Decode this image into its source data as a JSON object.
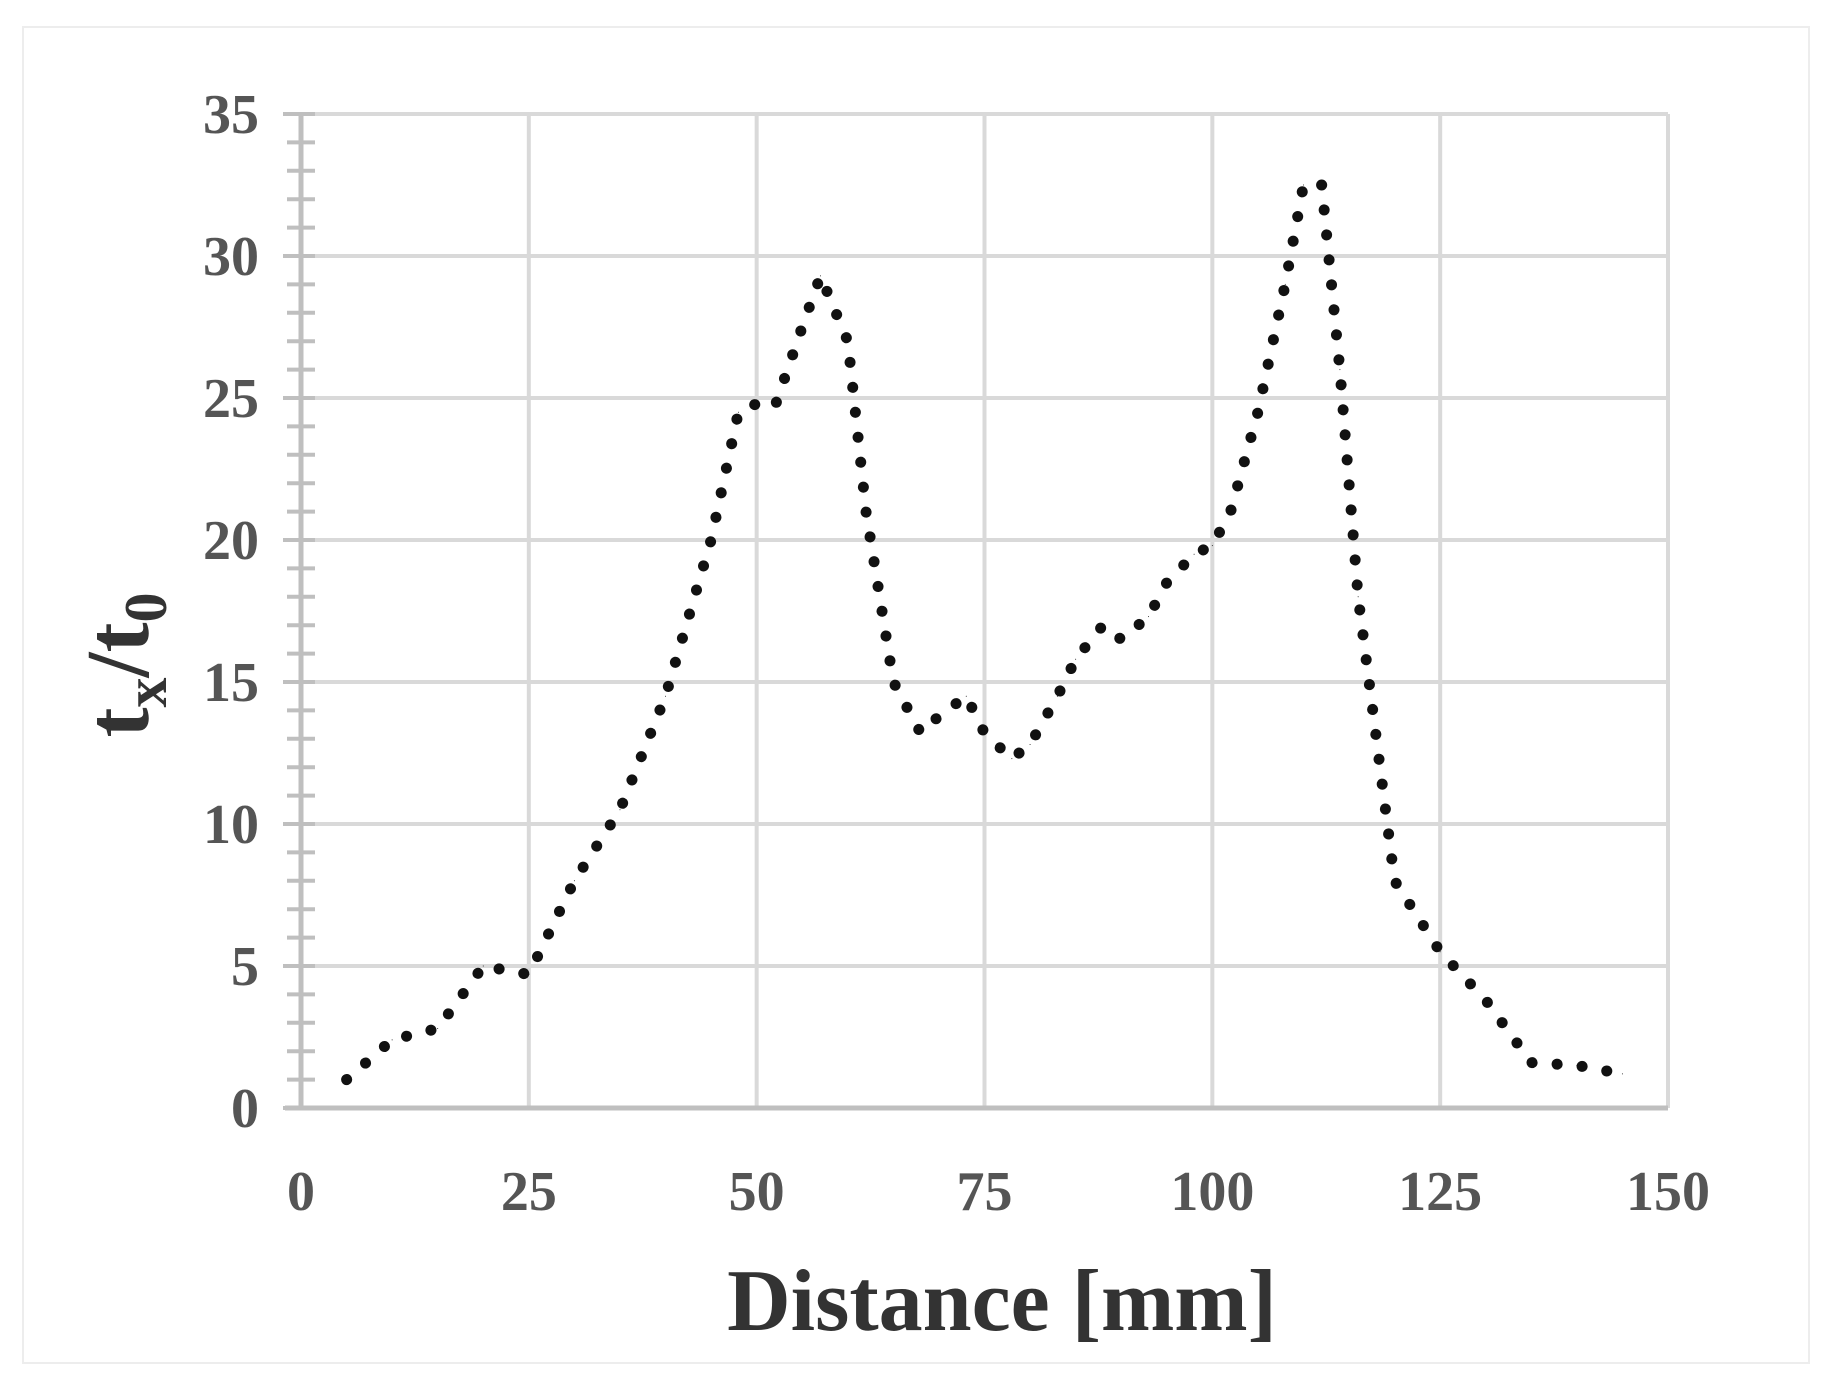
{
  "chart_data": {
    "type": "line",
    "line_style": "dotted",
    "xlabel": "Distance [mm]",
    "ylabel": {
      "base": "t",
      "sub1": "x",
      "sep": "/t",
      "sub2": "0"
    },
    "xlim": [
      0,
      150
    ],
    "ylim": [
      0,
      35
    ],
    "xticks": [
      0,
      25,
      50,
      75,
      100,
      125,
      150
    ],
    "yticks": [
      0,
      5,
      10,
      15,
      20,
      25,
      30,
      35
    ],
    "xtick_labels": [
      "0",
      "25",
      "50",
      "75",
      "100",
      "125",
      "150"
    ],
    "ytick_labels": [
      "0",
      "5",
      "10",
      "15",
      "20",
      "25",
      "30",
      "35"
    ],
    "grid": true,
    "colors": {
      "line": "#111111",
      "grid": "#d9d9d9",
      "axis": "#bfbfbf",
      "tick_label": "#555555",
      "title": "#333333"
    },
    "x": [
      5,
      10,
      15,
      20,
      25,
      30,
      35,
      40,
      45,
      48,
      50,
      52,
      55,
      57,
      60,
      62,
      65,
      68,
      70,
      73,
      75,
      78,
      80,
      83,
      85,
      88,
      90,
      93,
      95,
      98,
      100,
      102,
      105,
      108,
      110,
      112,
      114,
      116,
      118,
      120,
      125,
      130,
      135,
      140,
      145
    ],
    "y": [
      1,
      2.4,
      2.8,
      5,
      4.7,
      8,
      10.5,
      14.5,
      20,
      24.5,
      24.8,
      24.7,
      27.5,
      29.3,
      27,
      21,
      15,
      13.2,
      13.8,
      14.5,
      13.2,
      12.3,
      12.8,
      14.5,
      15.8,
      17,
      16.5,
      17.3,
      18.5,
      19.5,
      19.8,
      21,
      24.5,
      29,
      32.5,
      32.5,
      26,
      18,
      13,
      8,
      5.5,
      3.8,
      1.6,
      1.5,
      1.2
    ]
  }
}
